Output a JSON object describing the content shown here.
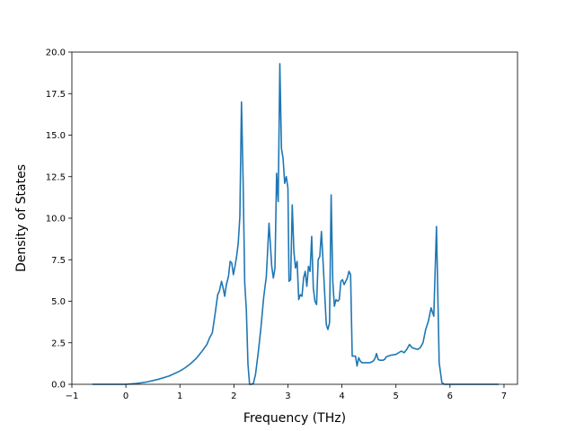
{
  "chart_data": {
    "type": "line",
    "title": "",
    "xlabel": "Frequency (THz)",
    "ylabel": "Density of States",
    "xlim": [
      -1.0,
      7.25
    ],
    "ylim": [
      0.0,
      20.0
    ],
    "xticks": [
      -1,
      0,
      1,
      2,
      3,
      4,
      5,
      6,
      7
    ],
    "xtick_labels": [
      "−1",
      "0",
      "1",
      "2",
      "3",
      "4",
      "5",
      "6",
      "7"
    ],
    "yticks": [
      0.0,
      2.5,
      5.0,
      7.5,
      10.0,
      12.5,
      15.0,
      17.5,
      20.0
    ],
    "ytick_labels": [
      "0.0",
      "2.5",
      "5.0",
      "7.5",
      "10.0",
      "12.5",
      "15.0",
      "17.5",
      "20.0"
    ],
    "grid": false,
    "line_color": "#1f77b4",
    "series": [
      {
        "x": [
          -0.62,
          -0.3,
          0.0,
          0.2,
          0.4,
          0.6,
          0.8,
          1.0,
          1.1,
          1.2,
          1.3,
          1.4,
          1.5,
          1.55,
          1.6,
          1.65,
          1.7,
          1.73,
          1.77,
          1.8,
          1.83,
          1.86,
          1.9,
          1.93,
          1.96,
          1.99,
          2.02,
          2.05,
          2.08,
          2.11,
          2.14,
          2.17,
          2.2,
          2.23,
          2.26,
          2.29,
          2.32,
          2.36,
          2.4,
          2.45,
          2.5,
          2.55,
          2.6,
          2.65,
          2.7,
          2.73,
          2.76,
          2.79,
          2.82,
          2.85,
          2.88,
          2.91,
          2.94,
          2.97,
          3.0,
          3.02,
          3.05,
          3.08,
          3.11,
          3.14,
          3.17,
          3.2,
          3.23,
          3.26,
          3.29,
          3.32,
          3.35,
          3.38,
          3.41,
          3.44,
          3.47,
          3.5,
          3.53,
          3.56,
          3.59,
          3.62,
          3.65,
          3.68,
          3.71,
          3.74,
          3.77,
          3.8,
          3.83,
          3.86,
          3.89,
          3.92,
          3.95,
          3.98,
          4.01,
          4.04,
          4.07,
          4.1,
          4.13,
          4.16,
          4.19,
          4.22,
          4.25,
          4.28,
          4.31,
          4.34,
          4.37,
          4.4,
          4.43,
          4.46,
          4.49,
          4.52,
          4.55,
          4.58,
          4.61,
          4.64,
          4.67,
          4.7,
          4.73,
          4.76,
          4.79,
          4.82,
          4.86,
          4.9,
          5.0,
          5.1,
          5.15,
          5.2,
          5.25,
          5.3,
          5.4,
          5.45,
          5.5,
          5.55,
          5.6,
          5.65,
          5.7,
          5.75,
          5.8,
          5.85,
          5.9,
          5.95,
          6.0,
          6.03,
          6.06,
          6.09,
          6.12,
          6.15,
          6.18,
          6.21,
          6.24,
          6.27,
          6.3,
          6.4,
          6.6,
          6.9
        ],
        "y": [
          0.0,
          0.0,
          0.0,
          0.05,
          0.15,
          0.3,
          0.5,
          0.8,
          1.0,
          1.25,
          1.55,
          1.95,
          2.4,
          2.8,
          3.1,
          4.2,
          5.4,
          5.6,
          6.2,
          5.8,
          5.3,
          6.0,
          6.5,
          7.4,
          7.3,
          6.6,
          7.1,
          7.7,
          8.5,
          10.1,
          17.0,
          12.3,
          6.1,
          4.5,
          1.2,
          0.0,
          0.0,
          0.05,
          0.6,
          1.9,
          3.4,
          5.2,
          6.5,
          9.7,
          7.1,
          6.4,
          7.0,
          12.7,
          11.0,
          19.3,
          14.2,
          13.6,
          12.1,
          12.5,
          11.8,
          6.2,
          6.3,
          10.8,
          8.0,
          7.0,
          7.4,
          5.1,
          5.4,
          5.3,
          6.4,
          6.8,
          5.9,
          7.1,
          6.8,
          8.9,
          5.8,
          5.0,
          4.8,
          7.5,
          7.7,
          9.2,
          7.4,
          5.5,
          3.6,
          3.3,
          3.7,
          11.4,
          6.2,
          4.7,
          5.1,
          5.0,
          5.1,
          6.2,
          6.3,
          6.0,
          6.2,
          6.4,
          6.8,
          6.6,
          1.7,
          1.7,
          1.7,
          1.1,
          1.6,
          1.4,
          1.3,
          1.3,
          1.3,
          1.3,
          1.3,
          1.3,
          1.35,
          1.4,
          1.55,
          1.85,
          1.5,
          1.45,
          1.45,
          1.45,
          1.5,
          1.65,
          1.7,
          1.75,
          1.8,
          2.0,
          1.9,
          2.1,
          2.4,
          2.2,
          2.1,
          2.2,
          2.5,
          3.3,
          3.8,
          4.6,
          4.1,
          9.5,
          1.3,
          0.1,
          0.0,
          0.0,
          0.0,
          0.0,
          0.0,
          0.0,
          0.0,
          0.0,
          0.0,
          0.0,
          0.0,
          0.0,
          0.0,
          0.0,
          0.0,
          0.0
        ]
      }
    ]
  }
}
